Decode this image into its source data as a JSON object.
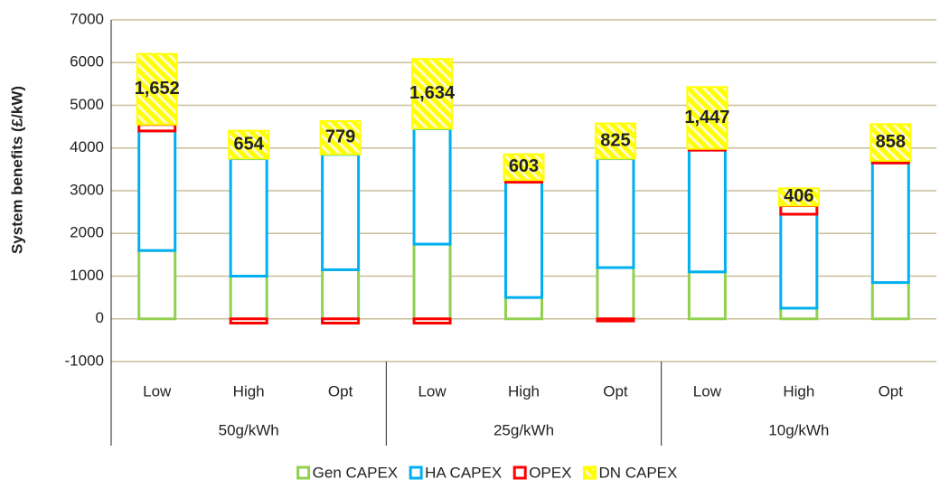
{
  "chart_data": {
    "type": "stacked-bar",
    "y_label": "System benefits (£/kW)",
    "categories": [
      "Low",
      "High",
      "Opt",
      "Low",
      "High",
      "Opt",
      "Low",
      "High",
      "Opt"
    ],
    "groups": [
      "50g/kWh",
      "25g/kWh",
      "10g/kWh"
    ],
    "series": [
      {
        "name": "Gen CAPEX",
        "color": "#92d050",
        "values": [
          1600,
          1000,
          1150,
          1750,
          500,
          1200,
          1100,
          250,
          850
        ]
      },
      {
        "name": "HA CAPEX",
        "color": "#00b0f0",
        "values": [
          2800,
          2750,
          2700,
          2700,
          2700,
          2550,
          2850,
          2200,
          2800
        ]
      },
      {
        "name": "OPEX",
        "color": "#ff0000",
        "values": [
          150,
          -100,
          -100,
          -100,
          50,
          -50,
          30,
          200,
          50
        ]
      },
      {
        "name": "DN CAPEX",
        "color": "#ffff00",
        "hatch": true,
        "values": [
          1652,
          654,
          779,
          1634,
          603,
          825,
          1447,
          406,
          858
        ],
        "value_labels": [
          "1,652",
          "654",
          "779",
          "1,634",
          "603",
          "825",
          "1,447",
          "406",
          "858"
        ]
      }
    ],
    "ylim": [
      -1000,
      7000
    ],
    "yticks": [
      -1000,
      0,
      1000,
      2000,
      3000,
      4000,
      5000,
      6000,
      7000
    ],
    "grid": true,
    "legend": "bottom"
  }
}
